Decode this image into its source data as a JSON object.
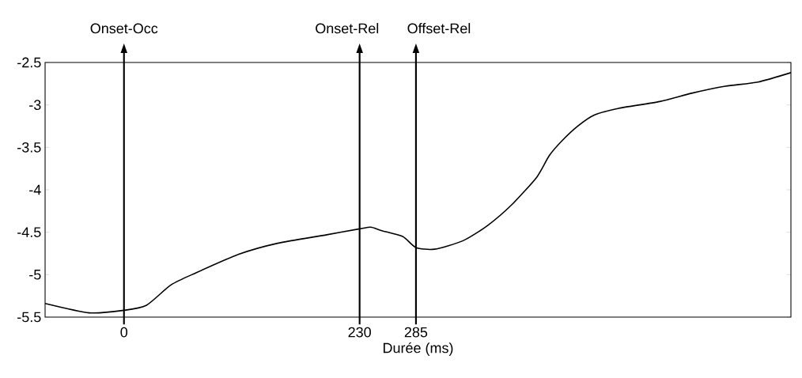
{
  "chart_data": {
    "type": "line",
    "xlabel": "Durée (ms)",
    "x": [
      -77,
      -34,
      0,
      22,
      46,
      70,
      112,
      150,
      198,
      230,
      241,
      251,
      272,
      285,
      303,
      331,
      355,
      379,
      403,
      415,
      427,
      443,
      459,
      483,
      523,
      555,
      587,
      619,
      651
    ],
    "series": [
      {
        "color": "#000000",
        "values": [
          -5.34,
          -5.45,
          -5.42,
          -5.36,
          -5.12,
          -4.98,
          -4.76,
          -4.63,
          -4.53,
          -4.46,
          -4.44,
          -4.48,
          -4.55,
          -4.68,
          -4.7,
          -4.6,
          -4.42,
          -4.17,
          -3.85,
          -3.6,
          -3.43,
          -3.25,
          -3.12,
          -3.04,
          -2.96,
          -2.86,
          -2.78,
          -2.73,
          -2.62
        ]
      }
    ],
    "xlim": [
      -77,
      651
    ],
    "ylim": [
      -5.5,
      -2.5
    ],
    "xticks": [
      0,
      230,
      285
    ],
    "yticks": [
      -5.5,
      -5,
      -4.5,
      -4,
      -3.5,
      -3,
      -2.5
    ],
    "ref_lines": [
      {
        "axis": "x",
        "value": 0,
        "label": "Onset-Occ"
      },
      {
        "axis": "x",
        "value": 230,
        "label": "Onset-Rel"
      },
      {
        "axis": "x",
        "value": 285,
        "label": "Offset-Rel"
      }
    ],
    "grid": false,
    "marker": "none",
    "line_style": "solid"
  }
}
